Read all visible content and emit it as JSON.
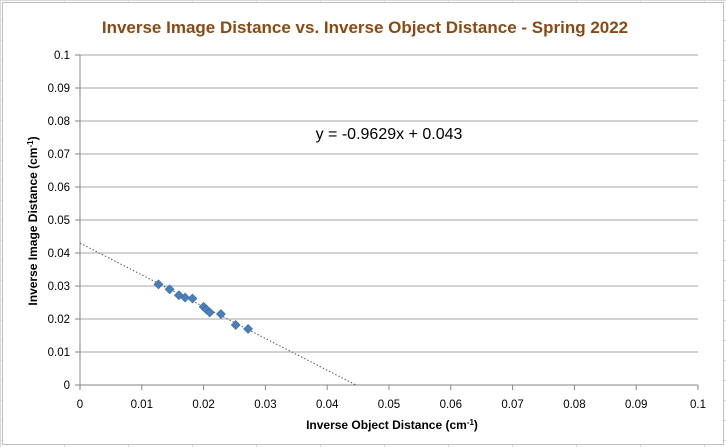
{
  "chart_data": {
    "type": "scatter",
    "title": "Inverse Image Distance vs. Inverse Object Distance  - Spring 2022",
    "xlabel": "Inverse Object Distance (cm",
    "ylabel": "Inverse Image Distance (cm",
    "unit_superscript": "-1",
    "unit_close": ")",
    "xlim": [
      0,
      0.1
    ],
    "ylim": [
      0,
      0.1
    ],
    "xticks": [
      "0",
      "0.01",
      "0.02",
      "0.03",
      "0.04",
      "0.05",
      "0.06",
      "0.07",
      "0.08",
      "0.09",
      "0.1"
    ],
    "yticks": [
      "0",
      "0.01",
      "0.02",
      "0.03",
      "0.04",
      "0.05",
      "0.06",
      "0.07",
      "0.08",
      "0.09",
      "0.1"
    ],
    "grid": "horizontal",
    "marker_color": "#4a7ebb",
    "trendline": {
      "slope": -0.9629,
      "intercept": 0.043,
      "label": "y = -0.9629x + 0.043"
    },
    "points": [
      {
        "x": 0.0127,
        "y": 0.0305
      },
      {
        "x": 0.0145,
        "y": 0.029
      },
      {
        "x": 0.016,
        "y": 0.0272
      },
      {
        "x": 0.017,
        "y": 0.0265
      },
      {
        "x": 0.0182,
        "y": 0.0262
      },
      {
        "x": 0.02,
        "y": 0.0237
      },
      {
        "x": 0.0205,
        "y": 0.0228
      },
      {
        "x": 0.021,
        "y": 0.022
      },
      {
        "x": 0.0228,
        "y": 0.0215
      },
      {
        "x": 0.0252,
        "y": 0.0182
      },
      {
        "x": 0.0272,
        "y": 0.017
      }
    ]
  }
}
